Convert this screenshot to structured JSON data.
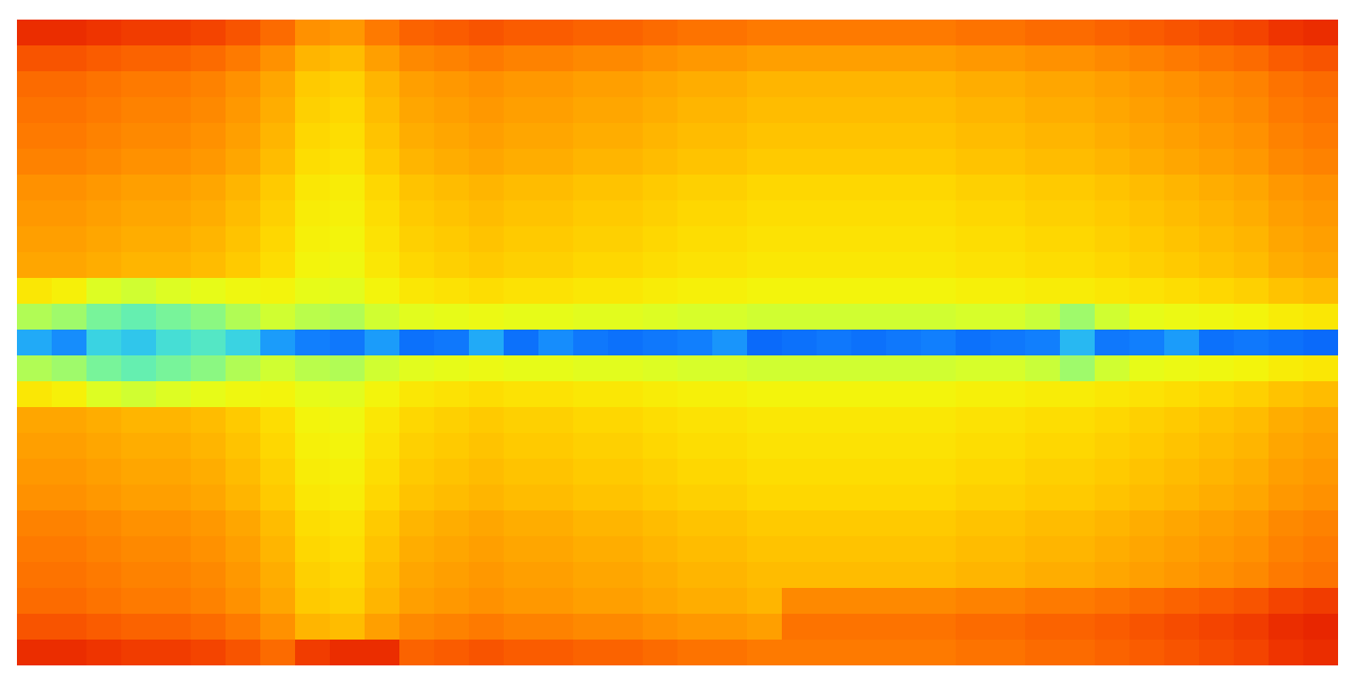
{
  "chart_data": {
    "type": "heatmap",
    "tick_labels": false,
    "zlim": [
      0,
      100
    ],
    "cells": [
      [
        84,
        84,
        83,
        82,
        82,
        81,
        79,
        76,
        71,
        70,
        74,
        77,
        78,
        79,
        78,
        78,
        77,
        77,
        76,
        75,
        75,
        74,
        74,
        74,
        74,
        74,
        74,
        75,
        75,
        76,
        76,
        77,
        78,
        79,
        80,
        81,
        83,
        84
      ],
      [
        79,
        79,
        78,
        77,
        77,
        76,
        74,
        71,
        66,
        65,
        69,
        72,
        73,
        74,
        73,
        73,
        72,
        72,
        71,
        70,
        70,
        69,
        69,
        69,
        69,
        69,
        69,
        70,
        70,
        71,
        71,
        72,
        73,
        74,
        75,
        76,
        78,
        79
      ],
      [
        76,
        76,
        75,
        74,
        74,
        73,
        71,
        68,
        63,
        62,
        66,
        69,
        70,
        71,
        70,
        70,
        69,
        69,
        68,
        67,
        67,
        66,
        66,
        66,
        66,
        66,
        66,
        67,
        67,
        68,
        68,
        69,
        70,
        71,
        72,
        73,
        75,
        76
      ],
      [
        75,
        75,
        74,
        73,
        73,
        72,
        70,
        67,
        62,
        61,
        65,
        68,
        69,
        70,
        69,
        69,
        68,
        68,
        67,
        66,
        66,
        65,
        65,
        65,
        65,
        65,
        65,
        66,
        66,
        67,
        67,
        68,
        69,
        70,
        71,
        72,
        74,
        75
      ],
      [
        74,
        74,
        73,
        72,
        72,
        71,
        69,
        66,
        61,
        60,
        64,
        67,
        68,
        69,
        68,
        68,
        67,
        67,
        66,
        65,
        65,
        64,
        64,
        64,
        64,
        64,
        64,
        65,
        65,
        66,
        66,
        67,
        68,
        69,
        70,
        71,
        73,
        74
      ],
      [
        73,
        73,
        72,
        71,
        71,
        70,
        68,
        65,
        60,
        59,
        63,
        66,
        67,
        68,
        67,
        67,
        66,
        66,
        65,
        64,
        64,
        63,
        63,
        63,
        63,
        63,
        63,
        64,
        64,
        65,
        65,
        66,
        67,
        68,
        69,
        70,
        72,
        73
      ],
      [
        71,
        71,
        70,
        69,
        69,
        68,
        66,
        63,
        58,
        57,
        61,
        64,
        65,
        66,
        65,
        65,
        64,
        64,
        63,
        62,
        62,
        61,
        61,
        61,
        61,
        61,
        61,
        62,
        62,
        63,
        63,
        64,
        65,
        66,
        67,
        68,
        70,
        71
      ],
      [
        70,
        70,
        69,
        68,
        68,
        67,
        65,
        62,
        57,
        56,
        60,
        63,
        64,
        65,
        64,
        64,
        63,
        63,
        62,
        61,
        61,
        60,
        60,
        60,
        60,
        60,
        60,
        61,
        61,
        62,
        62,
        63,
        64,
        65,
        66,
        67,
        69,
        70
      ],
      [
        69,
        69,
        68,
        67,
        67,
        66,
        64,
        61,
        56,
        55,
        59,
        62,
        63,
        64,
        63,
        63,
        62,
        62,
        61,
        60,
        60,
        59,
        59,
        59,
        59,
        59,
        59,
        60,
        60,
        61,
        61,
        62,
        63,
        64,
        65,
        66,
        68,
        69
      ],
      [
        68,
        68,
        67,
        66,
        66,
        65,
        63,
        60,
        55,
        54,
        58,
        61,
        62,
        63,
        62,
        62,
        61,
        61,
        60,
        59,
        59,
        58,
        58,
        58,
        58,
        58,
        58,
        59,
        59,
        60,
        60,
        61,
        62,
        63,
        64,
        65,
        67,
        68
      ],
      [
        58,
        56,
        50,
        48,
        50,
        52,
        54,
        55,
        52,
        51,
        55,
        58,
        59,
        60,
        59,
        59,
        58,
        58,
        57,
        56,
        56,
        55,
        55,
        55,
        55,
        55,
        55,
        56,
        56,
        57,
        57,
        58,
        59,
        60,
        61,
        62,
        64,
        65
      ],
      [
        44,
        42,
        38,
        36,
        38,
        40,
        44,
        48,
        45,
        44,
        48,
        51,
        52,
        53,
        52,
        52,
        51,
        51,
        50,
        49,
        49,
        48,
        48,
        48,
        48,
        48,
        48,
        49,
        49,
        47,
        42,
        48,
        52,
        53,
        54,
        55,
        57,
        58
      ],
      [
        24,
        20,
        30,
        28,
        32,
        34,
        30,
        22,
        18,
        17,
        22,
        16,
        17,
        24,
        16,
        20,
        17,
        16,
        17,
        18,
        21,
        15,
        16,
        17,
        16,
        17,
        18,
        16,
        17,
        18,
        26,
        17,
        18,
        22,
        16,
        17,
        16,
        15
      ],
      [
        44,
        42,
        38,
        36,
        38,
        40,
        44,
        48,
        45,
        44,
        48,
        51,
        52,
        53,
        52,
        52,
        51,
        51,
        50,
        49,
        49,
        48,
        48,
        48,
        48,
        48,
        48,
        49,
        49,
        47,
        42,
        48,
        52,
        53,
        54,
        55,
        57,
        58
      ],
      [
        58,
        56,
        50,
        48,
        50,
        52,
        54,
        55,
        52,
        51,
        55,
        58,
        59,
        60,
        59,
        59,
        58,
        58,
        57,
        56,
        56,
        55,
        55,
        55,
        55,
        55,
        55,
        56,
        56,
        57,
        57,
        58,
        59,
        60,
        61,
        62,
        64,
        65
      ],
      [
        68,
        68,
        67,
        66,
        66,
        65,
        63,
        60,
        55,
        54,
        58,
        61,
        62,
        63,
        62,
        62,
        61,
        61,
        60,
        59,
        59,
        58,
        58,
        58,
        58,
        58,
        58,
        59,
        59,
        60,
        60,
        61,
        62,
        63,
        64,
        65,
        67,
        68
      ],
      [
        69,
        69,
        68,
        67,
        67,
        66,
        64,
        61,
        56,
        55,
        59,
        62,
        63,
        64,
        63,
        63,
        62,
        62,
        61,
        60,
        60,
        59,
        59,
        59,
        59,
        59,
        59,
        60,
        60,
        61,
        61,
        62,
        63,
        64,
        65,
        66,
        68,
        69
      ],
      [
        70,
        70,
        69,
        68,
        68,
        67,
        65,
        62,
        57,
        56,
        60,
        63,
        64,
        65,
        64,
        64,
        63,
        63,
        62,
        61,
        61,
        60,
        60,
        60,
        60,
        60,
        60,
        61,
        61,
        62,
        62,
        63,
        64,
        65,
        66,
        67,
        69,
        70
      ],
      [
        71,
        71,
        70,
        69,
        69,
        68,
        66,
        63,
        58,
        57,
        61,
        64,
        65,
        66,
        65,
        65,
        64,
        64,
        63,
        62,
        62,
        61,
        61,
        61,
        61,
        61,
        61,
        62,
        62,
        63,
        63,
        64,
        65,
        66,
        67,
        68,
        70,
        71
      ],
      [
        73,
        73,
        72,
        71,
        71,
        70,
        68,
        65,
        60,
        59,
        63,
        66,
        67,
        68,
        67,
        67,
        66,
        66,
        65,
        64,
        64,
        63,
        63,
        63,
        63,
        63,
        63,
        64,
        64,
        65,
        65,
        66,
        67,
        68,
        69,
        70,
        72,
        73
      ],
      [
        74,
        74,
        73,
        72,
        72,
        71,
        69,
        66,
        61,
        60,
        64,
        67,
        68,
        69,
        68,
        68,
        67,
        67,
        66,
        65,
        65,
        64,
        64,
        64,
        64,
        64,
        64,
        65,
        65,
        66,
        66,
        67,
        68,
        69,
        70,
        71,
        73,
        74
      ],
      [
        75,
        75,
        74,
        73,
        73,
        72,
        70,
        67,
        62,
        61,
        65,
        68,
        69,
        70,
        69,
        69,
        68,
        68,
        67,
        66,
        66,
        65,
        65,
        65,
        65,
        65,
        65,
        66,
        66,
        67,
        67,
        68,
        69,
        70,
        71,
        72,
        74,
        75
      ],
      [
        76,
        76,
        75,
        74,
        74,
        73,
        71,
        68,
        63,
        62,
        66,
        69,
        70,
        71,
        70,
        70,
        69,
        69,
        68,
        67,
        67,
        66,
        72,
        72,
        72,
        72,
        72,
        73,
        73,
        74,
        74,
        75,
        76,
        77,
        78,
        79,
        81,
        82
      ],
      [
        79,
        79,
        78,
        77,
        77,
        76,
        74,
        71,
        66,
        65,
        69,
        72,
        73,
        74,
        73,
        73,
        72,
        72,
        71,
        70,
        70,
        69,
        75,
        75,
        75,
        75,
        75,
        76,
        76,
        77,
        77,
        78,
        79,
        80,
        81,
        82,
        84,
        85
      ],
      [
        84,
        84,
        83,
        82,
        82,
        81,
        79,
        76,
        82,
        84,
        84,
        77,
        78,
        79,
        78,
        78,
        77,
        77,
        76,
        75,
        75,
        74,
        74,
        74,
        74,
        74,
        74,
        75,
        75,
        76,
        76,
        77,
        78,
        79,
        80,
        81,
        83,
        84
      ]
    ]
  }
}
